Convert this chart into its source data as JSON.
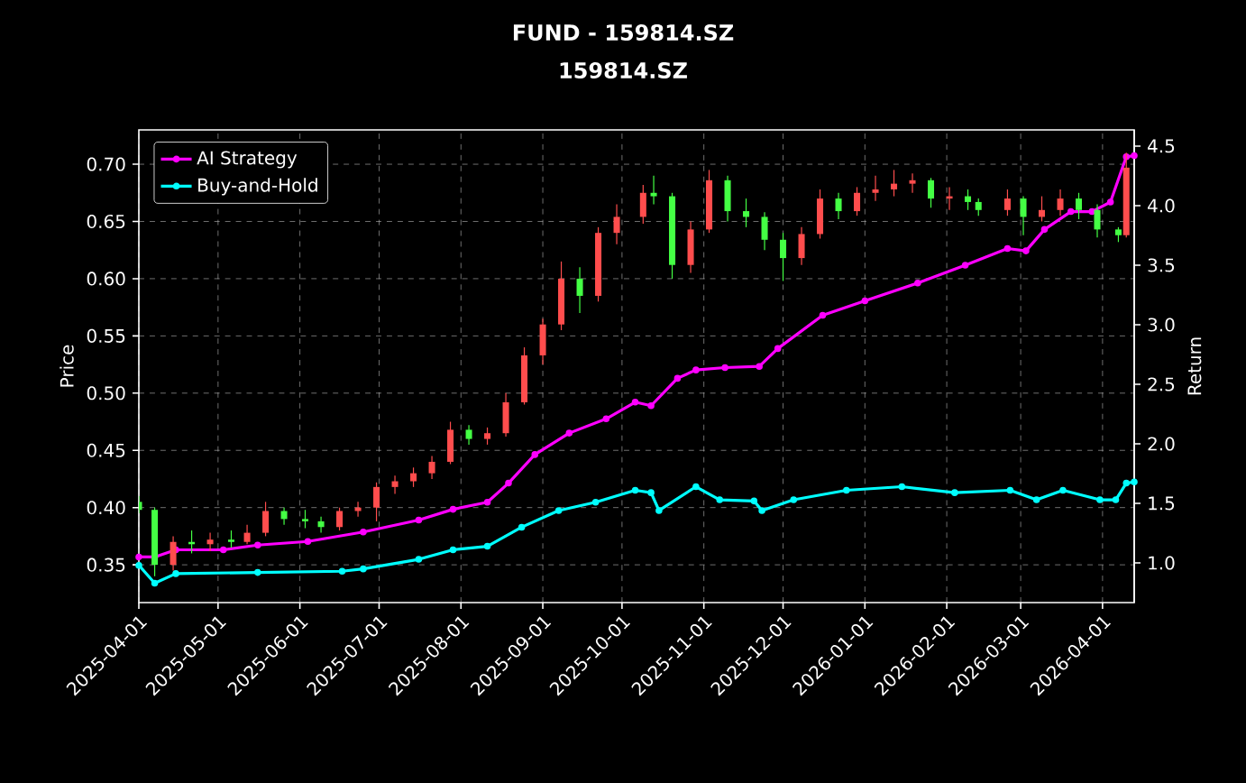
{
  "chart_data": {
    "type": "candlestick",
    "title": "FUND - 159814.SZ",
    "subtitle": "159814.SZ",
    "ylabel": "Price",
    "y2label": "Return",
    "x": [
      "2025-04-01",
      "2025-04-07",
      "2025-04-14",
      "2025-04-21",
      "2025-04-28",
      "2025-05-06",
      "2025-05-12",
      "2025-05-19",
      "2025-05-26",
      "2025-06-03",
      "2025-06-09",
      "2025-06-16",
      "2025-06-23",
      "2025-06-30",
      "2025-07-07",
      "2025-07-14",
      "2025-07-21",
      "2025-07-28",
      "2025-08-04",
      "2025-08-11",
      "2025-08-18",
      "2025-08-25",
      "2025-09-01",
      "2025-09-08",
      "2025-09-15",
      "2025-09-22",
      "2025-09-29",
      "2025-10-09",
      "2025-10-13",
      "2025-10-20",
      "2025-10-27",
      "2025-11-03",
      "2025-11-10",
      "2025-11-17",
      "2025-11-24",
      "2025-12-01",
      "2025-12-08",
      "2025-12-15",
      "2025-12-22",
      "2025-12-29",
      "2026-01-05",
      "2026-01-12",
      "2026-01-19",
      "2026-01-26",
      "2026-02-02",
      "2026-02-09",
      "2026-02-13",
      "2026-02-24",
      "2026-03-02",
      "2026-03-09",
      "2026-03-16",
      "2026-03-23",
      "2026-03-30",
      "2026-04-07",
      "2026-04-10"
    ],
    "ohlc": [
      [
        0.405,
        0.41,
        0.395,
        0.398
      ],
      [
        0.398,
        0.4,
        0.34,
        0.35
      ],
      [
        0.35,
        0.375,
        0.345,
        0.37
      ],
      [
        0.37,
        0.38,
        0.36,
        0.368
      ],
      [
        0.368,
        0.378,
        0.362,
        0.372
      ],
      [
        0.372,
        0.38,
        0.365,
        0.37
      ],
      [
        0.37,
        0.385,
        0.368,
        0.378
      ],
      [
        0.378,
        0.405,
        0.375,
        0.397
      ],
      [
        0.397,
        0.4,
        0.385,
        0.39
      ],
      [
        0.39,
        0.398,
        0.382,
        0.388
      ],
      [
        0.388,
        0.392,
        0.378,
        0.383
      ],
      [
        0.383,
        0.4,
        0.38,
        0.397
      ],
      [
        0.397,
        0.405,
        0.392,
        0.4
      ],
      [
        0.4,
        0.422,
        0.388,
        0.418
      ],
      [
        0.418,
        0.428,
        0.412,
        0.423
      ],
      [
        0.423,
        0.435,
        0.418,
        0.43
      ],
      [
        0.43,
        0.445,
        0.425,
        0.44
      ],
      [
        0.44,
        0.475,
        0.438,
        0.468
      ],
      [
        0.468,
        0.472,
        0.455,
        0.46
      ],
      [
        0.46,
        0.47,
        0.455,
        0.465
      ],
      [
        0.465,
        0.5,
        0.462,
        0.492
      ],
      [
        0.492,
        0.54,
        0.49,
        0.533
      ],
      [
        0.533,
        0.565,
        0.525,
        0.56
      ],
      [
        0.56,
        0.615,
        0.555,
        0.6
      ],
      [
        0.6,
        0.61,
        0.57,
        0.585
      ],
      [
        0.585,
        0.645,
        0.58,
        0.64
      ],
      [
        0.64,
        0.665,
        0.63,
        0.654
      ],
      [
        0.654,
        0.682,
        0.648,
        0.675
      ],
      [
        0.675,
        0.69,
        0.665,
        0.672
      ],
      [
        0.672,
        0.675,
        0.6,
        0.612
      ],
      [
        0.612,
        0.65,
        0.605,
        0.643
      ],
      [
        0.643,
        0.695,
        0.64,
        0.686
      ],
      [
        0.686,
        0.69,
        0.65,
        0.659
      ],
      [
        0.659,
        0.67,
        0.645,
        0.654
      ],
      [
        0.654,
        0.658,
        0.625,
        0.634
      ],
      [
        0.634,
        0.64,
        0.598,
        0.618
      ],
      [
        0.618,
        0.645,
        0.612,
        0.639
      ],
      [
        0.639,
        0.678,
        0.635,
        0.67
      ],
      [
        0.67,
        0.675,
        0.652,
        0.659
      ],
      [
        0.659,
        0.68,
        0.655,
        0.675
      ],
      [
        0.675,
        0.69,
        0.668,
        0.678
      ],
      [
        0.678,
        0.695,
        0.672,
        0.683
      ],
      [
        0.683,
        0.692,
        0.675,
        0.686
      ],
      [
        0.686,
        0.688,
        0.662,
        0.67
      ],
      [
        0.67,
        0.68,
        0.66,
        0.672
      ],
      [
        0.672,
        0.678,
        0.66,
        0.667
      ],
      [
        0.667,
        0.67,
        0.655,
        0.66
      ],
      [
        0.66,
        0.678,
        0.655,
        0.67
      ],
      [
        0.67,
        0.672,
        0.638,
        0.654
      ],
      [
        0.654,
        0.672,
        0.65,
        0.66
      ],
      [
        0.66,
        0.678,
        0.655,
        0.67
      ],
      [
        0.67,
        0.675,
        0.652,
        0.66
      ],
      [
        0.66,
        0.665,
        0.636,
        0.643
      ],
      [
        0.643,
        0.645,
        0.632,
        0.638
      ],
      [
        0.638,
        0.71,
        0.636,
        0.697
      ]
    ],
    "colors": [
      "#44ff44",
      "#44ff44",
      "#ff4d4d",
      "#44ff44",
      "#ff4d4d",
      "#44ff44",
      "#ff4d4d",
      "#ff4d4d",
      "#44ff44",
      "#44ff44",
      "#44ff44",
      "#ff4d4d",
      "#ff4d4d",
      "#ff4d4d",
      "#ff4d4d",
      "#ff4d4d",
      "#ff4d4d",
      "#ff4d4d",
      "#44ff44",
      "#ff4d4d",
      "#ff4d4d",
      "#ff4d4d",
      "#ff4d4d",
      "#ff4d4d",
      "#44ff44",
      "#ff4d4d",
      "#ff4d4d",
      "#ff4d4d",
      "#44ff44",
      "#44ff44",
      "#ff4d4d",
      "#ff4d4d",
      "#44ff44",
      "#44ff44",
      "#44ff44",
      "#44ff44",
      "#ff4d4d",
      "#ff4d4d",
      "#44ff44",
      "#ff4d4d",
      "#ff4d4d",
      "#ff4d4d",
      "#ff4d4d",
      "#44ff44",
      "#ff4d4d",
      "#44ff44",
      "#44ff44",
      "#ff4d4d",
      "#44ff44",
      "#ff4d4d",
      "#ff4d4d",
      "#44ff44",
      "#44ff44",
      "#44ff44",
      "#ff4d4d"
    ],
    "series": [
      {
        "name": "AI Strategy",
        "type": "line",
        "axis": "y2",
        "color": "#ff00ff",
        "x": [
          "2025-04-01",
          "2025-04-07",
          "2025-04-15",
          "2025-05-03",
          "2025-05-16",
          "2025-06-04",
          "2025-06-25",
          "2025-07-16",
          "2025-07-29",
          "2025-08-11",
          "2025-08-19",
          "2025-08-29",
          "2025-09-11",
          "2025-09-25",
          "2025-10-06",
          "2025-10-12",
          "2025-10-22",
          "2025-10-29",
          "2025-11-09",
          "2025-11-22",
          "2025-11-29",
          "2025-12-16",
          "2026-01-01",
          "2026-01-21",
          "2026-02-08",
          "2026-02-24",
          "2026-03-03",
          "2026-03-10",
          "2026-03-20",
          "2026-03-28",
          "2026-04-04",
          "2026-04-10",
          "2026-04-13"
        ],
        "values": [
          1.05,
          1.05,
          1.11,
          1.11,
          1.15,
          1.18,
          1.26,
          1.36,
          1.45,
          1.51,
          1.67,
          1.91,
          2.09,
          2.21,
          2.35,
          2.32,
          2.55,
          2.62,
          2.64,
          2.65,
          2.8,
          3.08,
          3.2,
          3.35,
          3.5,
          3.64,
          3.62,
          3.8,
          3.95,
          3.95,
          4.03,
          4.41,
          4.42
        ]
      },
      {
        "name": "Buy-and-Hold",
        "type": "line",
        "axis": "y2",
        "color": "#00ffff",
        "x": [
          "2025-04-01",
          "2025-04-07",
          "2025-04-15",
          "2025-05-16",
          "2025-06-17",
          "2025-06-25",
          "2025-07-16",
          "2025-07-29",
          "2025-08-11",
          "2025-08-24",
          "2025-09-07",
          "2025-09-21",
          "2025-10-06",
          "2025-10-12",
          "2025-10-15",
          "2025-10-29",
          "2025-11-07",
          "2025-11-20",
          "2025-11-23",
          "2025-12-05",
          "2025-12-25",
          "2026-01-15",
          "2026-02-04",
          "2026-02-25",
          "2026-03-07",
          "2026-03-17",
          "2026-03-31",
          "2026-04-06",
          "2026-04-10",
          "2026-04-13"
        ],
        "values": [
          0.98,
          0.83,
          0.91,
          0.92,
          0.93,
          0.95,
          1.03,
          1.11,
          1.14,
          1.3,
          1.44,
          1.51,
          1.61,
          1.59,
          1.44,
          1.64,
          1.53,
          1.52,
          1.44,
          1.53,
          1.61,
          1.64,
          1.59,
          1.61,
          1.53,
          1.61,
          1.53,
          1.53,
          1.67,
          1.68
        ]
      }
    ],
    "xlim": [
      "2025-04-01",
      "2026-04-13"
    ],
    "xticks": [
      "2025-04-01",
      "2025-05-01",
      "2025-06-01",
      "2025-07-01",
      "2025-08-01",
      "2025-09-01",
      "2025-10-01",
      "2025-11-01",
      "2025-12-01",
      "2026-01-01",
      "2026-02-01",
      "2026-03-01",
      "2026-04-01"
    ],
    "ylim": [
      0.317,
      0.73
    ],
    "yticks": [
      {
        "value": 0.35,
        "label": "0.35"
      },
      {
        "value": 0.4,
        "label": "0.40"
      },
      {
        "value": 0.45,
        "label": "0.45"
      },
      {
        "value": 0.5,
        "label": "0.50"
      },
      {
        "value": 0.55,
        "label": "0.55"
      },
      {
        "value": 0.6,
        "label": "0.60"
      },
      {
        "value": 0.65,
        "label": "0.65"
      },
      {
        "value": 0.7,
        "label": "0.70"
      }
    ],
    "y2lim": [
      0.667,
      4.636
    ],
    "y2ticks": [
      {
        "value": 1.0,
        "label": "1.0"
      },
      {
        "value": 1.5,
        "label": "1.5"
      },
      {
        "value": 2.0,
        "label": "2.0"
      },
      {
        "value": 2.5,
        "label": "2.5"
      },
      {
        "value": 3.0,
        "label": "3.0"
      },
      {
        "value": 3.5,
        "label": "3.5"
      },
      {
        "value": 4.0,
        "label": "4.0"
      },
      {
        "value": 4.5,
        "label": "4.5"
      }
    ],
    "grid": true,
    "legend": "top left",
    "marker": "circle"
  }
}
